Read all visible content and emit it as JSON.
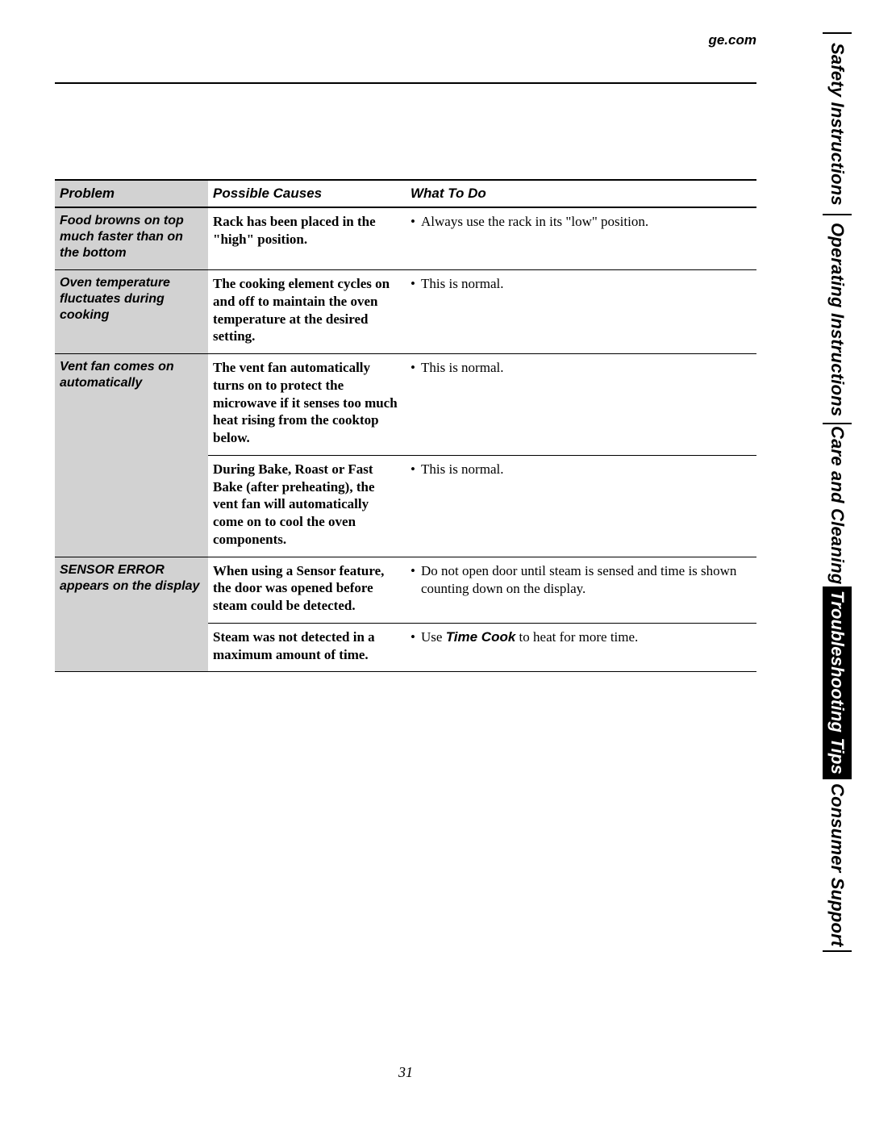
{
  "header": {
    "site": "ge.com"
  },
  "side_tabs": [
    {
      "label": "Safety Instructions",
      "style": "white",
      "flex": 1.0
    },
    {
      "label": "Operating Instructions",
      "style": "white",
      "flex": 1.15
    },
    {
      "label": "Care and Cleaning",
      "style": "white",
      "flex": 0.9
    },
    {
      "label": "Troubleshooting Tips",
      "style": "black",
      "flex": 1.05
    },
    {
      "label": "Consumer Support",
      "style": "white",
      "flex": 0.95
    }
  ],
  "table": {
    "headers": {
      "problem": "Problem",
      "cause": "Possible Causes",
      "todo": "What To Do"
    },
    "rows": [
      {
        "problem": "Food browns on top much faster than on the bottom",
        "cause": "Rack has been placed in the \"high\" position.",
        "todo_bullets": [
          {
            "text": "Always use the rack in its \"low\" position."
          }
        ],
        "border_after": true
      },
      {
        "problem": "Oven temperature fluctuates during cooking",
        "cause": "The cooking element cycles on and off to maintain the oven temperature at the desired setting.",
        "todo_bullets": [
          {
            "text": "This is normal."
          }
        ],
        "border_after": true
      },
      {
        "problem": "Vent fan comes on automatically",
        "problem_rowspan": 2,
        "cause": "The vent fan automatically turns on to protect the microwave if it senses too much heat rising from the cooktop below.",
        "todo_bullets": [
          {
            "text": "This is normal."
          }
        ],
        "border_after": true
      },
      {
        "cause": "During Bake, Roast or Fast Bake (after preheating), the vent fan will automatically come on to cool the oven components.",
        "todo_bullets": [
          {
            "text": "This is normal."
          }
        ],
        "border_after": true
      },
      {
        "problem": "SENSOR ERROR appears on the display",
        "problem_rowspan": 2,
        "cause": "When using a Sensor feature, the door was opened before steam could be detected.",
        "todo_bullets": [
          {
            "text": "Do not open door until steam is sensed and time is shown counting down on the display."
          }
        ],
        "border_after": true
      },
      {
        "cause": "Steam was not detected in a maximum amount of time.",
        "todo_bullets": [
          {
            "text_pre": "Use ",
            "emph": "Time Cook",
            "text_post": " to heat for more time."
          }
        ],
        "border_after": true
      }
    ]
  },
  "page_number": "31",
  "colors": {
    "page_bg": "#ffffff",
    "text": "#000000",
    "rule": "#000000",
    "problem_col_bg": "#d2d2d2",
    "tab_active_bg": "#000000",
    "tab_active_fg": "#ffffff"
  }
}
